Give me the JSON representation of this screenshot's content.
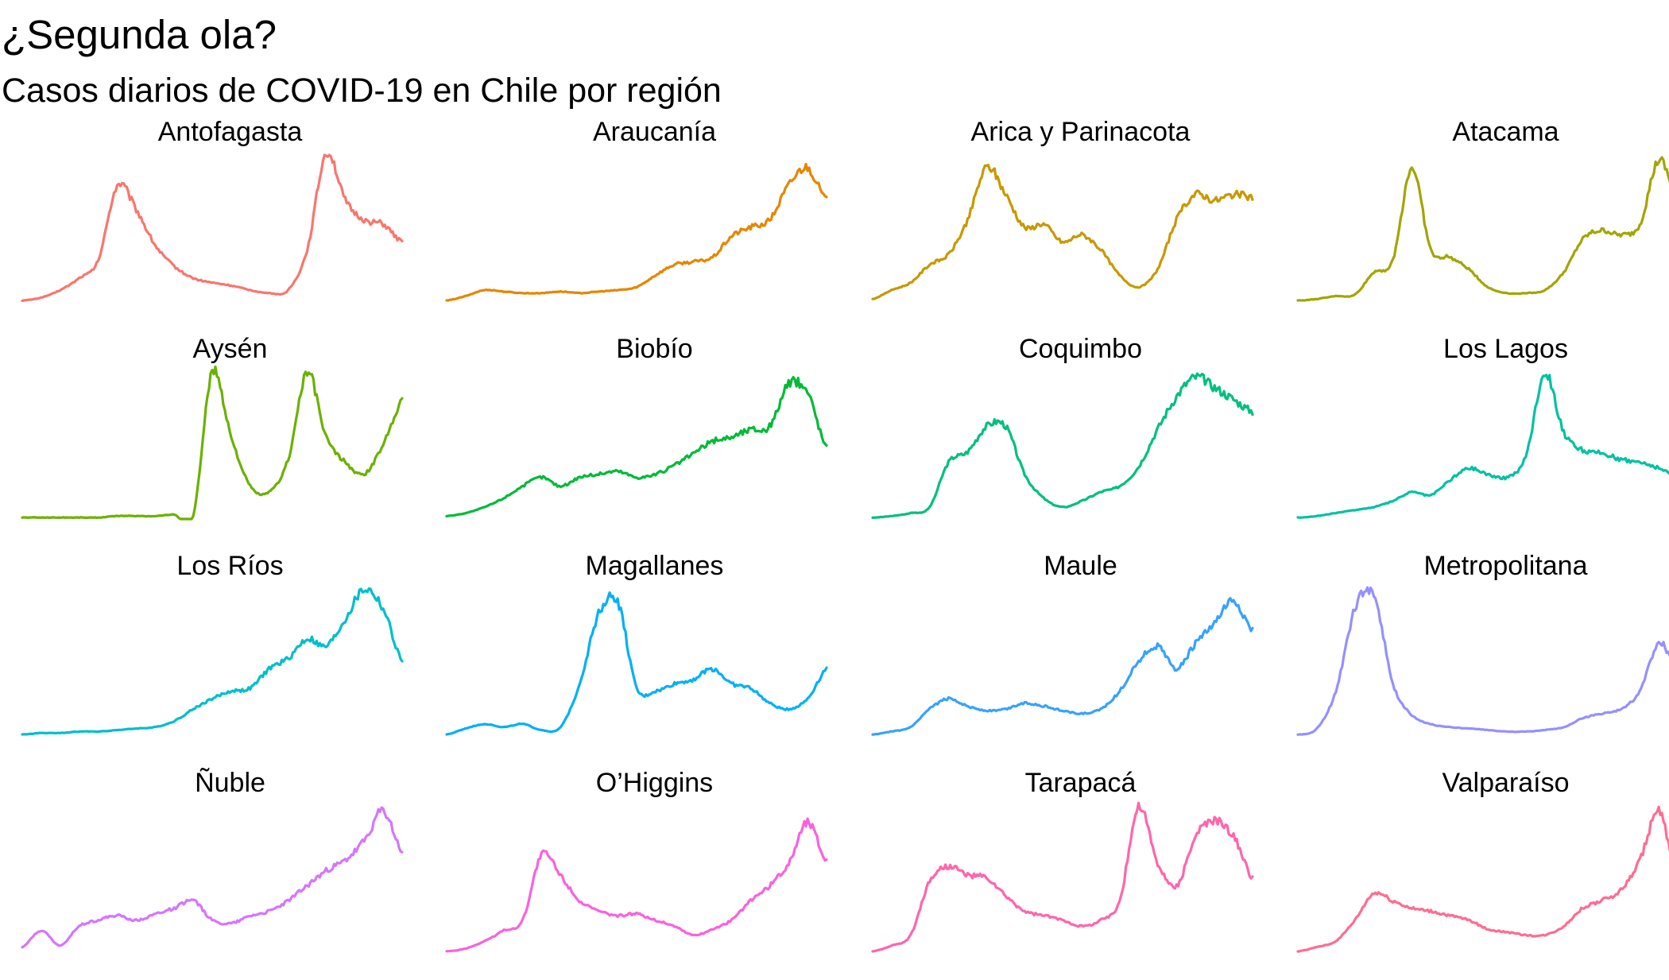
{
  "chart_data": {
    "type": "line",
    "title": "¿Segunda ola?",
    "subtitle": "Casos diarios de COVID-19 en Chile por región",
    "layout": {
      "facets": "wrap",
      "columns": 4,
      "axes": "hidden",
      "grid": false,
      "legend": "none",
      "scales": "free_y"
    },
    "x": [
      0,
      0.05,
      0.1,
      0.15,
      0.2,
      0.25,
      0.3,
      0.35,
      0.4,
      0.45,
      0.5,
      0.55,
      0.6,
      0.65,
      0.7,
      0.75,
      0.8,
      0.85,
      0.9,
      0.95,
      1.0
    ],
    "ylim": [
      0,
      1
    ],
    "series": [
      {
        "name": "Antofagasta",
        "color": "#F8766D",
        "values": [
          0.01,
          0.03,
          0.08,
          0.16,
          0.28,
          0.78,
          0.62,
          0.38,
          0.24,
          0.16,
          0.13,
          0.11,
          0.08,
          0.06,
          0.08,
          0.35,
          1.0,
          0.68,
          0.55,
          0.52,
          0.4
        ]
      },
      {
        "name": "Araucanía",
        "color": "#E58700",
        "values": [
          0.01,
          0.04,
          0.08,
          0.07,
          0.06,
          0.06,
          0.07,
          0.06,
          0.07,
          0.08,
          0.1,
          0.18,
          0.25,
          0.27,
          0.3,
          0.44,
          0.5,
          0.55,
          0.78,
          0.9,
          0.68
        ]
      },
      {
        "name": "Arica y Parinacota",
        "color": "#C99800",
        "values": [
          0.02,
          0.08,
          0.13,
          0.25,
          0.32,
          0.55,
          0.9,
          0.72,
          0.5,
          0.52,
          0.4,
          0.45,
          0.35,
          0.18,
          0.1,
          0.22,
          0.55,
          0.72,
          0.68,
          0.72,
          0.7
        ]
      },
      {
        "name": "Atacama",
        "color": "#A3A500",
        "values": [
          0.01,
          0.02,
          0.04,
          0.05,
          0.2,
          0.28,
          0.9,
          0.35,
          0.3,
          0.22,
          0.1,
          0.06,
          0.06,
          0.08,
          0.2,
          0.42,
          0.48,
          0.45,
          0.52,
          0.95,
          0.68
        ]
      },
      {
        "name": "Aysén",
        "color": "#6BB100",
        "values": [
          0.01,
          0.01,
          0.01,
          0.01,
          0.01,
          0.02,
          0.02,
          0.02,
          0.03,
          0.02,
          0.98,
          0.55,
          0.22,
          0.18,
          0.4,
          0.98,
          0.55,
          0.38,
          0.3,
          0.5,
          0.8
        ]
      },
      {
        "name": "Biobío",
        "color": "#00BA38",
        "values": [
          0.02,
          0.04,
          0.08,
          0.14,
          0.22,
          0.28,
          0.22,
          0.28,
          0.3,
          0.32,
          0.28,
          0.3,
          0.36,
          0.44,
          0.52,
          0.55,
          0.6,
          0.62,
          0.9,
          0.85,
          0.48
        ]
      },
      {
        "name": "Coquimbo",
        "color": "#00BF7D",
        "values": [
          0.01,
          0.02,
          0.04,
          0.08,
          0.38,
          0.45,
          0.62,
          0.62,
          0.3,
          0.14,
          0.08,
          0.12,
          0.18,
          0.22,
          0.35,
          0.6,
          0.82,
          0.95,
          0.88,
          0.8,
          0.72
        ]
      },
      {
        "name": "Los Lagos",
        "color": "#00C1A3",
        "values": [
          0.01,
          0.02,
          0.04,
          0.06,
          0.08,
          0.12,
          0.18,
          0.16,
          0.26,
          0.34,
          0.3,
          0.28,
          0.42,
          0.98,
          0.58,
          0.46,
          0.44,
          0.4,
          0.38,
          0.34,
          0.28
        ]
      },
      {
        "name": "Los Ríos",
        "color": "#00BECC",
        "values": [
          0.01,
          0.02,
          0.02,
          0.03,
          0.03,
          0.04,
          0.05,
          0.06,
          0.1,
          0.18,
          0.25,
          0.3,
          0.32,
          0.45,
          0.52,
          0.65,
          0.6,
          0.78,
          0.98,
          0.85,
          0.5
        ]
      },
      {
        "name": "Magallanes",
        "color": "#00B0F6",
        "values": [
          0.01,
          0.05,
          0.08,
          0.06,
          0.08,
          0.04,
          0.06,
          0.35,
          0.82,
          0.9,
          0.32,
          0.3,
          0.35,
          0.38,
          0.45,
          0.35,
          0.32,
          0.22,
          0.18,
          0.25,
          0.45
        ]
      },
      {
        "name": "Maule",
        "color": "#35A2FF",
        "values": [
          0.01,
          0.03,
          0.06,
          0.18,
          0.25,
          0.2,
          0.17,
          0.18,
          0.22,
          0.2,
          0.17,
          0.15,
          0.18,
          0.3,
          0.5,
          0.6,
          0.45,
          0.62,
          0.75,
          0.9,
          0.7
        ]
      },
      {
        "name": "Metropolitana",
        "color": "#9590FF",
        "values": [
          0.01,
          0.05,
          0.3,
          0.85,
          0.95,
          0.35,
          0.14,
          0.08,
          0.06,
          0.05,
          0.04,
          0.03,
          0.03,
          0.04,
          0.06,
          0.12,
          0.15,
          0.18,
          0.3,
          0.62,
          0.45
        ]
      },
      {
        "name": "Ñuble",
        "color": "#D575FE",
        "values": [
          0.04,
          0.15,
          0.05,
          0.18,
          0.22,
          0.25,
          0.22,
          0.26,
          0.3,
          0.35,
          0.22,
          0.2,
          0.25,
          0.28,
          0.35,
          0.45,
          0.55,
          0.62,
          0.75,
          0.95,
          0.68
        ]
      },
      {
        "name": "O’Higgins",
        "color": "#F962DD",
        "values": [
          0.01,
          0.03,
          0.08,
          0.15,
          0.22,
          0.66,
          0.52,
          0.35,
          0.28,
          0.25,
          0.26,
          0.22,
          0.18,
          0.12,
          0.16,
          0.22,
          0.35,
          0.45,
          0.6,
          0.88,
          0.62
        ]
      },
      {
        "name": "Tarapacá",
        "color": "#FF65AC",
        "values": [
          0.01,
          0.05,
          0.12,
          0.48,
          0.58,
          0.52,
          0.5,
          0.38,
          0.28,
          0.25,
          0.22,
          0.18,
          0.22,
          0.35,
          0.98,
          0.6,
          0.45,
          0.78,
          0.88,
          0.78,
          0.5
        ]
      },
      {
        "name": "Valparaíso",
        "color": "#FF6C91",
        "values": [
          0.01,
          0.04,
          0.08,
          0.22,
          0.4,
          0.35,
          0.3,
          0.28,
          0.25,
          0.22,
          0.16,
          0.14,
          0.12,
          0.12,
          0.18,
          0.3,
          0.35,
          0.42,
          0.62,
          0.95,
          0.48
        ]
      }
    ]
  }
}
